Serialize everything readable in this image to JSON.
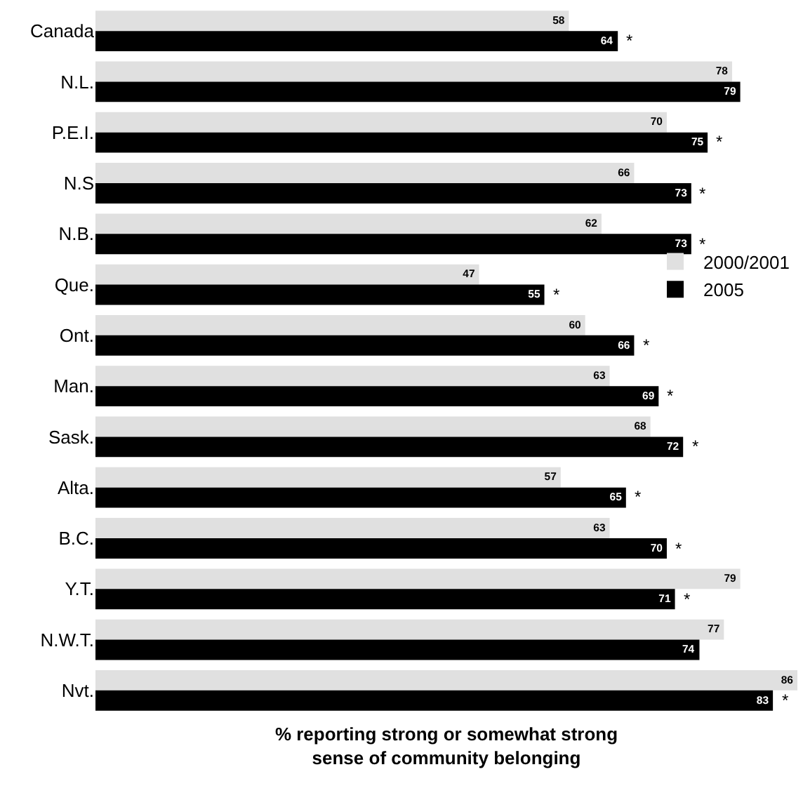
{
  "chart_data": {
    "type": "bar",
    "orientation": "horizontal",
    "xlabel": "% reporting strong or somewhat strong\nsense of community belonging",
    "categories": [
      "Canada",
      "N.L.",
      "P.E.I.",
      "N.S",
      "N.B.",
      "Que.",
      "Ont.",
      "Man.",
      "Sask.",
      "Alta.",
      "B.C.",
      "Y.T.",
      "N.W.T.",
      "Nvt."
    ],
    "series": [
      {
        "name": "2000/2001",
        "color": "#e0e0e0",
        "values": [
          58,
          78,
          70,
          66,
          62,
          47,
          60,
          63,
          68,
          57,
          63,
          79,
          77,
          86
        ]
      },
      {
        "name": "2005",
        "color": "#000000",
        "values": [
          64,
          79,
          75,
          73,
          73,
          55,
          66,
          69,
          72,
          65,
          70,
          71,
          74,
          83
        ]
      }
    ],
    "data_labels": true,
    "grid": false,
    "legend": "right",
    "annotations": [
      {
        "text": "*",
        "x": 64,
        "y": "Canada"
      },
      {
        "text": "*",
        "x": 75,
        "y": "P.E.I."
      },
      {
        "text": "*",
        "x": 73,
        "y": "N.S"
      },
      {
        "text": "*",
        "x": 73,
        "y": "N.B."
      },
      {
        "text": "*",
        "x": 55,
        "y": "Que."
      },
      {
        "text": "*",
        "x": 66,
        "y": "Ont."
      },
      {
        "text": "*",
        "x": 69,
        "y": "Man."
      },
      {
        "text": "*",
        "x": 72,
        "y": "Sask."
      },
      {
        "text": "*",
        "x": 65,
        "y": "Alta."
      },
      {
        "text": "*",
        "x": 70,
        "y": "B.C."
      },
      {
        "text": "*",
        "x": 71,
        "y": "Y.T."
      },
      {
        "text": "*",
        "x": 83,
        "y": "Nvt."
      }
    ]
  }
}
